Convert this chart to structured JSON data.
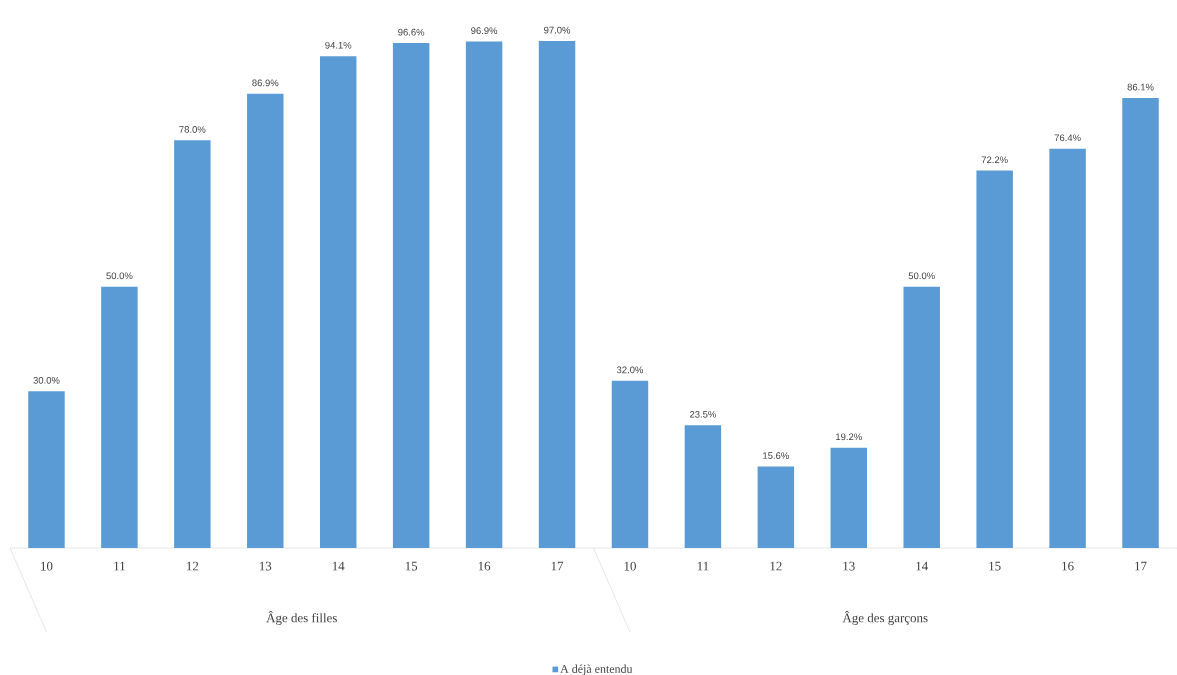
{
  "chart_data": {
    "type": "bar",
    "categories": [
      "10",
      "11",
      "12",
      "13",
      "14",
      "15",
      "16",
      "17",
      "10",
      "11",
      "12",
      "13",
      "14",
      "15",
      "16",
      "17"
    ],
    "series": [
      {
        "name": "A déjà entendu",
        "color": "#5b9bd5",
        "values": [
          30.0,
          50.0,
          78.0,
          86.9,
          94.1,
          96.6,
          96.9,
          97.0,
          32.0,
          23.5,
          15.6,
          19.2,
          50.0,
          72.2,
          76.4,
          86.1
        ],
        "value_labels": [
          "30.0%",
          "50.0%",
          "78.0%",
          "86.9%",
          "94.1%",
          "96.6%",
          "96.9%",
          "97.0%",
          "32.0%",
          "23.5%",
          "15.6%",
          "19.2%",
          "50.0%",
          "72.2%",
          "76.4%",
          "86.1%"
        ]
      }
    ],
    "annotations": [
      "Âge des filles",
      "Âge des garçons"
    ],
    "legend": "bottom"
  }
}
